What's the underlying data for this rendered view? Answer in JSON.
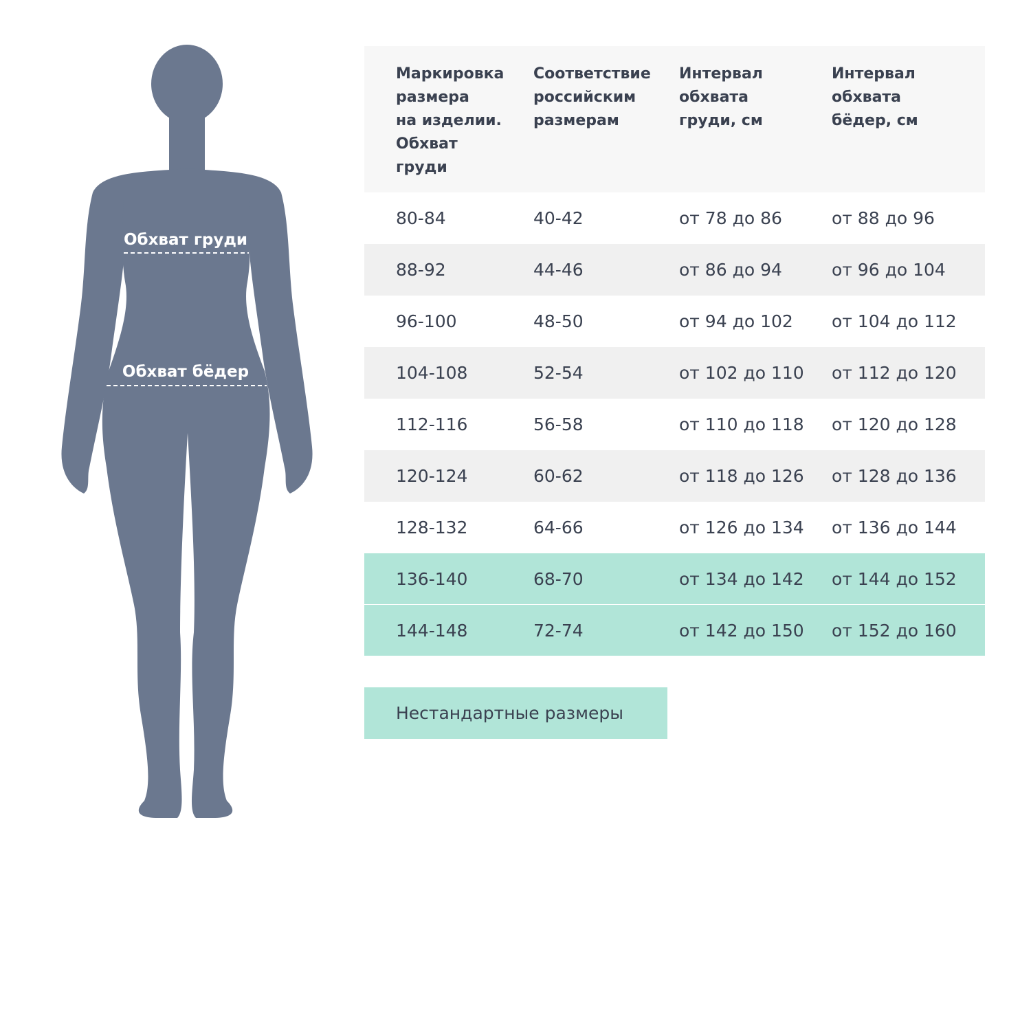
{
  "figure": {
    "labels": [
      "Обхват груди",
      "Обхват бёдер"
    ]
  },
  "table": {
    "header": [
      [
        "Маркировка",
        "размера",
        "на изделии.",
        "Обхват",
        "груди"
      ],
      [
        "Соответствие",
        "российским",
        "размерам"
      ],
      [
        "Интервал",
        "обхвата",
        "груди, см"
      ],
      [
        "Интервал",
        "обхвата",
        "бёдер, см"
      ]
    ],
    "rows": [
      [
        "80-84",
        "40-42",
        "от 78 до 86",
        "от 88 до 96"
      ],
      [
        "88-92",
        "44-46",
        "от 86 до 94",
        "от 96 до 104"
      ],
      [
        "96-100",
        "48-50",
        "от 94 до 102",
        "от 104 до 112"
      ],
      [
        "104-108",
        "52-54",
        "от 102 до 110",
        "от 112 до 120"
      ],
      [
        "112-116",
        "56-58",
        "от 110 до 118",
        "от 120 до 128"
      ],
      [
        "120-124",
        "60-62",
        "от 118 до 126",
        "от 128 до 136"
      ],
      [
        "128-132",
        "64-66",
        "от 126 до 134",
        "от 136 до 144"
      ],
      [
        "136-140",
        "68-70",
        "от 134 до 142",
        "от 144 до 152"
      ],
      [
        "144-148",
        "72-74",
        "от 142 до 150",
        "от 152 до 160"
      ]
    ]
  },
  "legend": {
    "label": "Нестандартные размеры"
  }
}
